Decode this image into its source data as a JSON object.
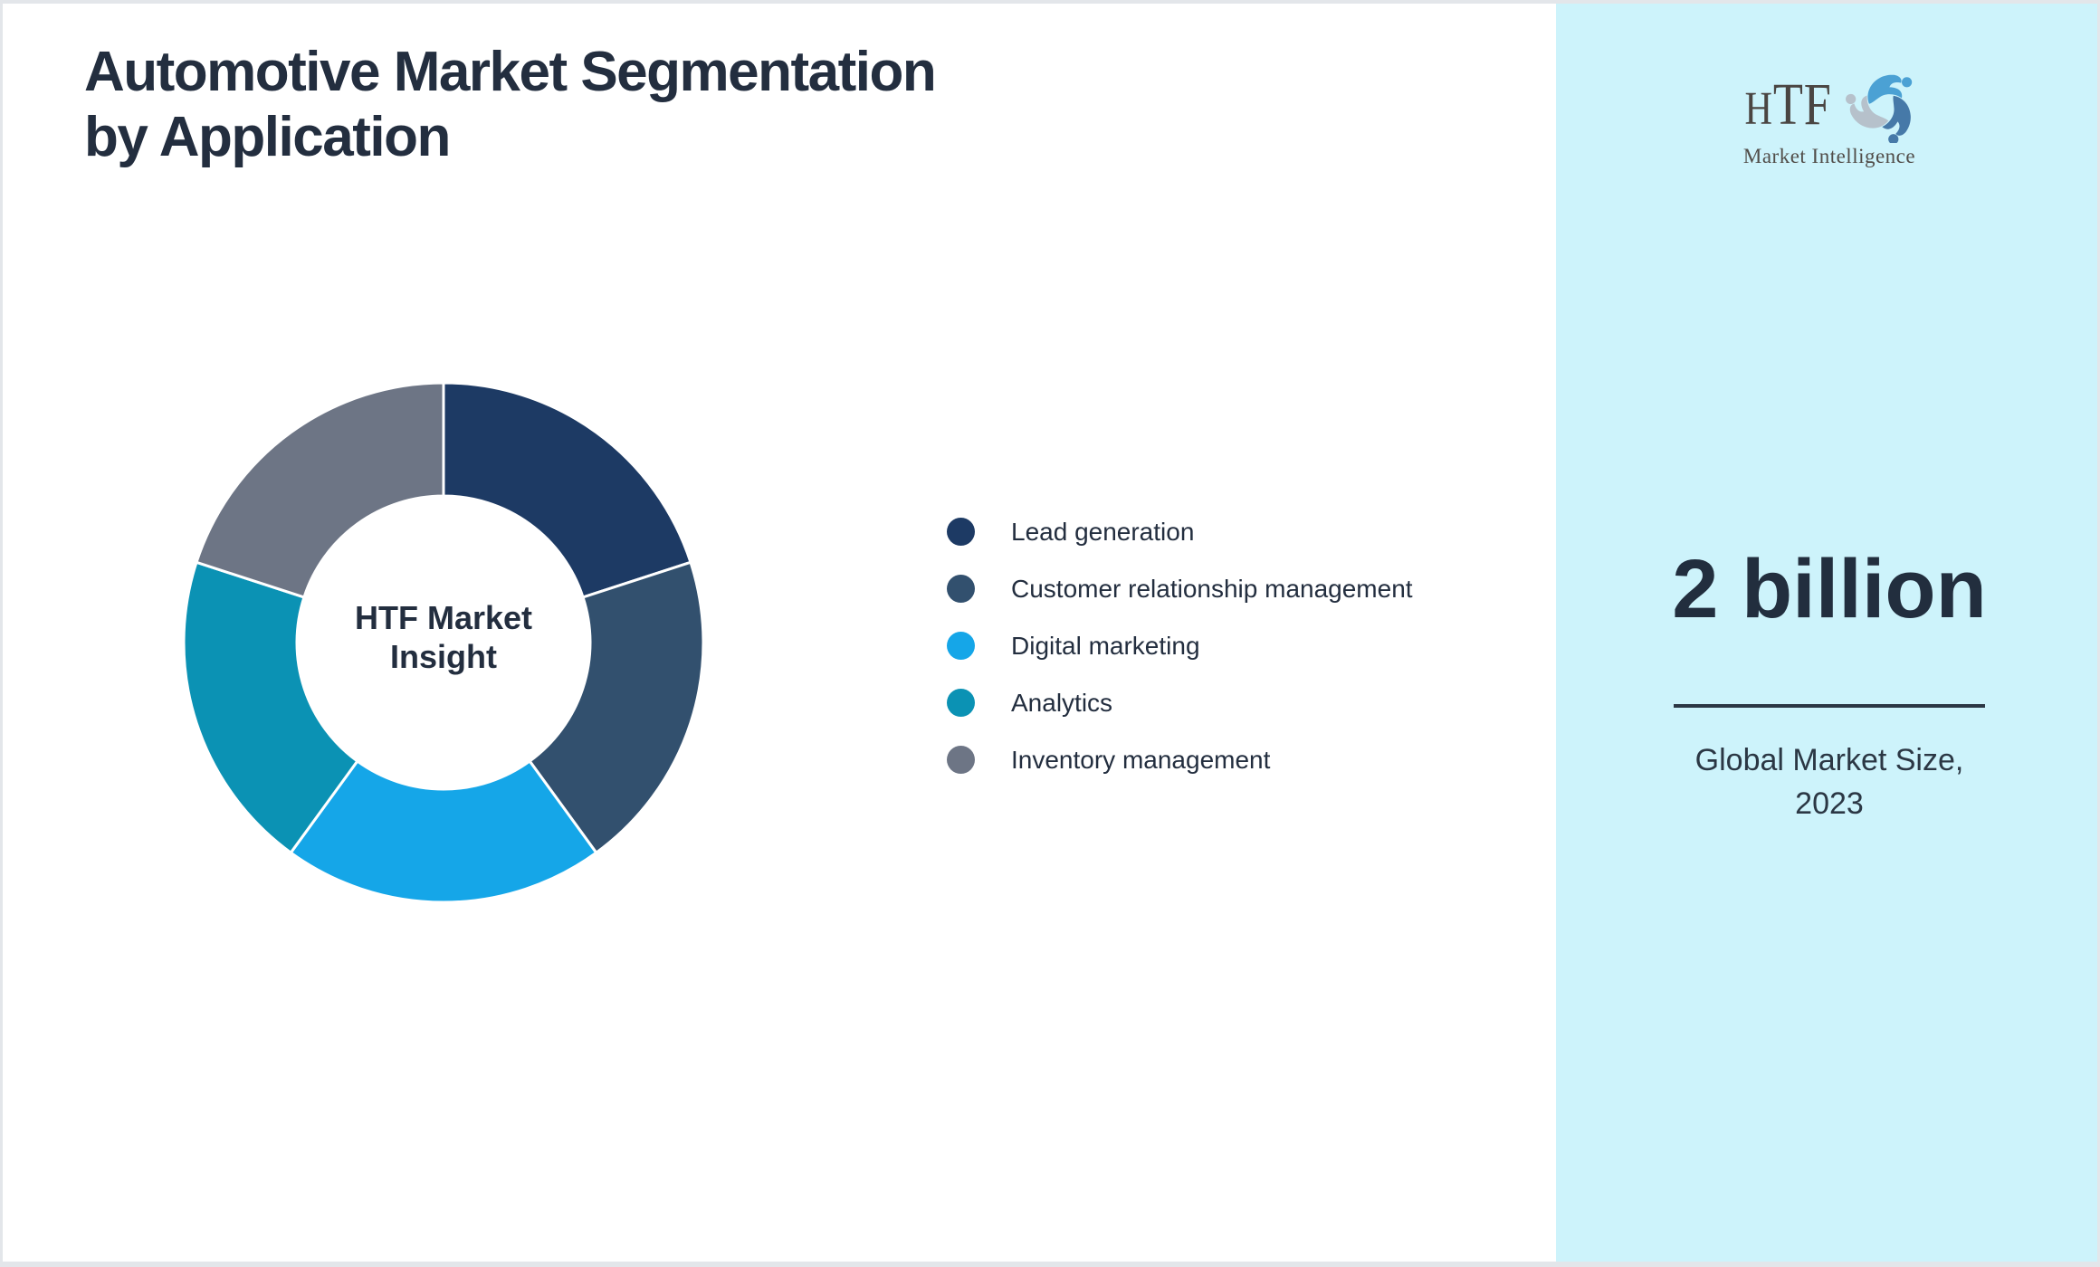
{
  "page": {
    "title_line1": "Automotive Market Segmentation",
    "title_line2": "by Application",
    "background": "#ffffff",
    "border_color": "#e3e6ea",
    "text_color": "#232e3f"
  },
  "chart_data": {
    "type": "pie",
    "donut": true,
    "title": "Automotive Market Segmentation by Application",
    "categories": [
      "Lead generation",
      "Customer relationship management",
      "Digital marketing",
      "Analytics",
      "Inventory management"
    ],
    "values": [
      20,
      20,
      20,
      20,
      20
    ],
    "unit": "%",
    "colors": [
      "#1d3a64",
      "#32506e",
      "#15a6e8",
      "#0b92b4",
      "#6d7585"
    ],
    "start_angle_deg": 0,
    "direction": "clockwise",
    "gap_color": "#ffffff",
    "legend_position": "right",
    "center_label_line1": "HTF Market",
    "center_label_line2": "Insight"
  },
  "sidebar": {
    "background": "#cdf3fb",
    "logo": {
      "text_h": "H",
      "text_tf": "TF",
      "subtext": "Market Intelligence",
      "swirl_colors": [
        "#4ba1d4",
        "#4679a8",
        "#b6c1cb"
      ]
    },
    "stat_value": "2 billion",
    "stat_label_line1": "Global Market Size,",
    "stat_label_line2": "2023"
  }
}
